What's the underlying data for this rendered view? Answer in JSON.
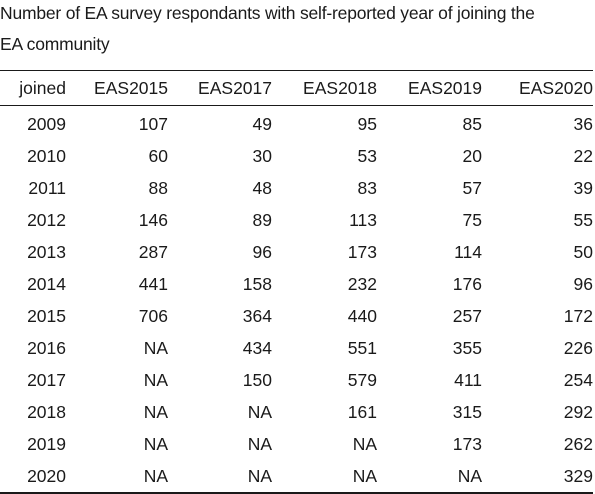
{
  "caption": {
    "line1": "Number of EA survey respondants with self-reported year of joining the",
    "line2": "EA community"
  },
  "table": {
    "columns": [
      "joined",
      "EAS2015",
      "EAS2017",
      "EAS2018",
      "EAS2019",
      "EAS2020"
    ],
    "rows": [
      [
        "2009",
        "107",
        "49",
        "95",
        "85",
        "36"
      ],
      [
        "2010",
        "60",
        "30",
        "53",
        "20",
        "22"
      ],
      [
        "2011",
        "88",
        "48",
        "83",
        "57",
        "39"
      ],
      [
        "2012",
        "146",
        "89",
        "113",
        "75",
        "55"
      ],
      [
        "2013",
        "287",
        "96",
        "173",
        "114",
        "50"
      ],
      [
        "2014",
        "441",
        "158",
        "232",
        "176",
        "96"
      ],
      [
        "2015",
        "706",
        "364",
        "440",
        "257",
        "172"
      ],
      [
        "2016",
        "NA",
        "434",
        "551",
        "355",
        "226"
      ],
      [
        "2017",
        "NA",
        "150",
        "579",
        "411",
        "254"
      ],
      [
        "2018",
        "NA",
        "NA",
        "161",
        "315",
        "292"
      ],
      [
        "2019",
        "NA",
        "NA",
        "NA",
        "173",
        "262"
      ],
      [
        "2020",
        "NA",
        "NA",
        "NA",
        "NA",
        "329"
      ]
    ]
  }
}
